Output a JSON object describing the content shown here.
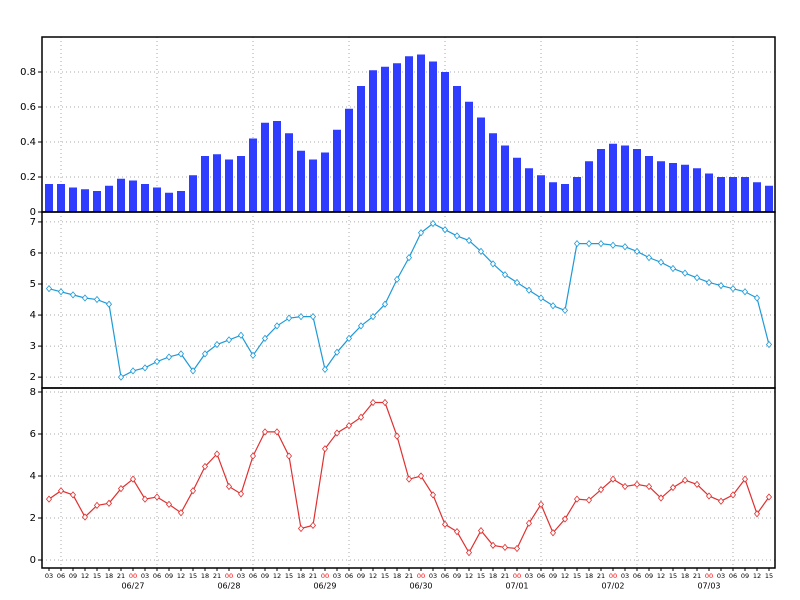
{
  "chart_data": [
    {
      "type": "bar",
      "color": "#2f3dff",
      "grid": true,
      "ylim": [
        0,
        1.0
      ],
      "yticks": [
        0,
        0.2,
        0.4,
        0.6,
        0.8
      ],
      "values": [
        0.16,
        0.16,
        0.14,
        0.13,
        0.12,
        0.15,
        0.19,
        0.18,
        0.16,
        0.14,
        0.11,
        0.12,
        0.21,
        0.32,
        0.33,
        0.3,
        0.32,
        0.42,
        0.51,
        0.52,
        0.45,
        0.35,
        0.3,
        0.34,
        0.47,
        0.59,
        0.72,
        0.81,
        0.83,
        0.85,
        0.89,
        0.9,
        0.86,
        0.8,
        0.72,
        0.63,
        0.54,
        0.45,
        0.38,
        0.31,
        0.25,
        0.21,
        0.17,
        0.16,
        0.2,
        0.29,
        0.36,
        0.39,
        0.38,
        0.36,
        0.32,
        0.29,
        0.28,
        0.27,
        0.25,
        0.22,
        0.2,
        0.2,
        0.2,
        0.17,
        0.15
      ]
    },
    {
      "type": "line",
      "color": "#1e9ad8",
      "grid": true,
      "ylim": [
        1.65,
        7.32
      ],
      "yticks": [
        2,
        3,
        4,
        5,
        6,
        7
      ],
      "values": [
        4.85,
        4.75,
        4.65,
        4.55,
        4.5,
        4.35,
        2.0,
        2.2,
        2.3,
        2.5,
        2.65,
        2.75,
        2.2,
        2.75,
        3.05,
        3.2,
        3.35,
        2.7,
        3.25,
        3.65,
        3.9,
        3.95,
        3.95,
        2.25,
        2.8,
        3.25,
        3.65,
        3.95,
        4.35,
        5.15,
        5.85,
        6.65,
        6.95,
        6.75,
        6.55,
        6.4,
        6.05,
        5.65,
        5.3,
        5.05,
        4.8,
        4.55,
        4.3,
        4.15,
        6.3,
        6.3,
        6.3,
        6.25,
        6.2,
        6.05,
        5.85,
        5.7,
        5.5,
        5.35,
        5.2,
        5.05,
        4.95,
        4.85,
        4.75,
        4.55,
        3.05
      ]
    },
    {
      "type": "line",
      "color": "#e03030",
      "grid": true,
      "ylim": [
        -0.38,
        8.19
      ],
      "yticks": [
        0,
        2,
        4,
        6,
        8
      ],
      "values": [
        2.9,
        3.3,
        3.1,
        2.05,
        2.6,
        2.7,
        3.4,
        3.85,
        2.9,
        3.0,
        2.65,
        2.25,
        3.3,
        4.45,
        5.05,
        3.5,
        3.15,
        4.95,
        6.1,
        6.1,
        4.95,
        1.5,
        1.65,
        5.3,
        6.05,
        6.4,
        6.8,
        7.5,
        7.5,
        5.9,
        3.85,
        4.0,
        3.1,
        1.7,
        1.35,
        0.35,
        1.4,
        0.7,
        0.6,
        0.55,
        1.75,
        2.65,
        1.3,
        1.95,
        2.9,
        2.85,
        3.35,
        3.85,
        3.5,
        3.6,
        3.5,
        2.95,
        3.45,
        3.8,
        3.6,
        3.05,
        2.8,
        3.1,
        3.85,
        2.2,
        3.0
      ],
      "categories": [
        "03",
        "06",
        "09",
        "12",
        "15",
        "18",
        "21",
        "00",
        "03",
        "06",
        "09",
        "12",
        "15",
        "18",
        "21",
        "00",
        "03",
        "06",
        "09",
        "12",
        "15",
        "18",
        "21",
        "00",
        "03",
        "06",
        "09",
        "12",
        "15",
        "18",
        "21",
        "00",
        "03",
        "06",
        "09",
        "12",
        "15",
        "18",
        "21",
        "00",
        "03",
        "06",
        "09",
        "12",
        "15",
        "18",
        "21",
        "00",
        "03",
        "06",
        "09",
        "12",
        "15",
        "18",
        "21",
        "00",
        "03",
        "06",
        "09",
        "12",
        "15"
      ],
      "date_labels": [
        null,
        null,
        null,
        null,
        null,
        null,
        null,
        "06/27",
        null,
        null,
        null,
        null,
        null,
        null,
        null,
        "06/28",
        null,
        null,
        null,
        null,
        null,
        null,
        null,
        "06/29",
        null,
        null,
        null,
        null,
        null,
        null,
        null,
        "06/30",
        null,
        null,
        null,
        null,
        null,
        null,
        null,
        "07/01",
        null,
        null,
        null,
        null,
        null,
        null,
        null,
        "07/02",
        null,
        null,
        null,
        null,
        null,
        null,
        null,
        "07/03",
        null,
        null,
        null,
        null,
        null
      ],
      "date_tick_color": "#ff0000"
    }
  ]
}
